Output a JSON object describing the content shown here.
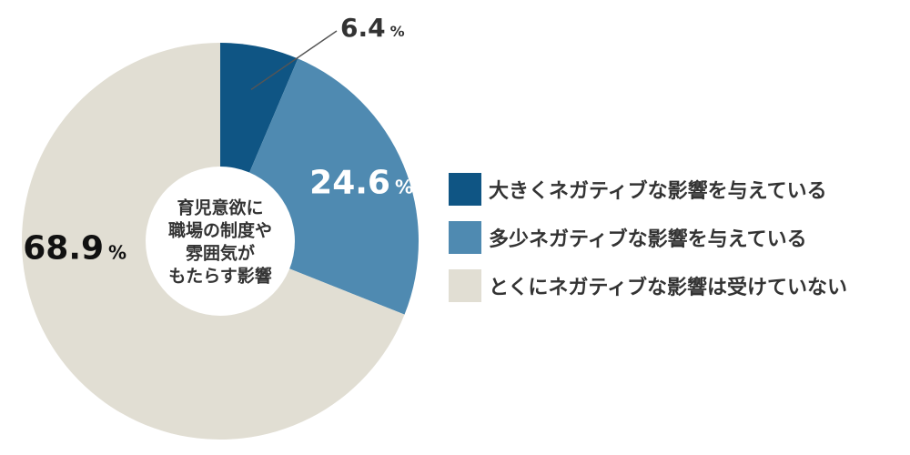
{
  "chart_data": {
    "type": "pie",
    "title": "",
    "center_label": [
      "育児意欲に",
      "職場の制度や",
      "雰囲気が",
      "もたらす影響"
    ],
    "unit": "%",
    "series": [
      {
        "name": "大きくネガティブな影響を与えている",
        "value": 6.4,
        "label": "6.4",
        "color": "#0f5584"
      },
      {
        "name": "多少ネガティブな影響を与えている",
        "value": 24.6,
        "label": "24.6",
        "color": "#4f8ab1"
      },
      {
        "name": "とくにネガティブな影響は受けていない",
        "value": 68.9,
        "label": "68.9",
        "color": "#e1ded3"
      }
    ],
    "legend_position": "right"
  }
}
